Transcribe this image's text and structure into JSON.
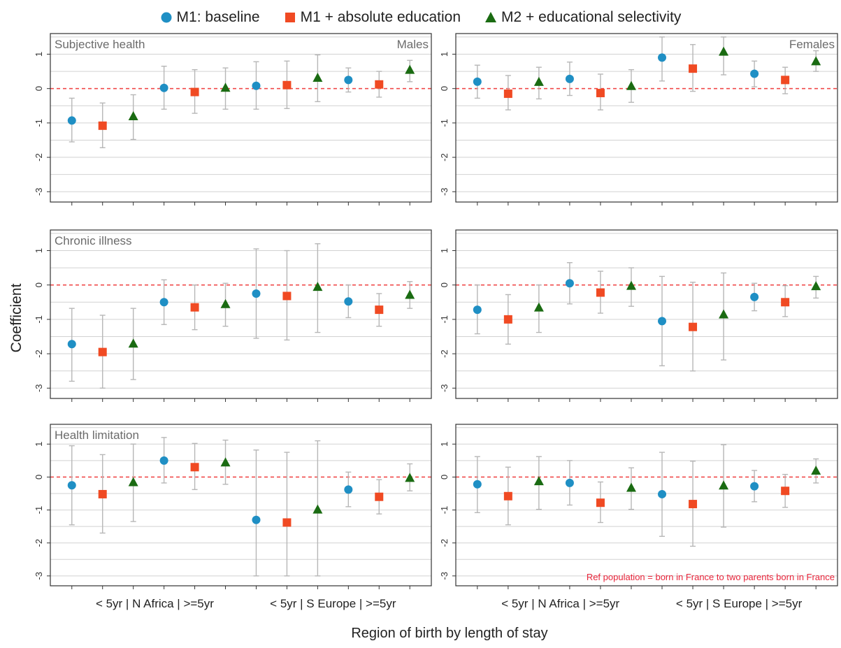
{
  "legend": {
    "items": [
      {
        "label": "M1: baseline",
        "marker": "circle",
        "color": "#1f8fc4"
      },
      {
        "label": "M1 + absolute education",
        "marker": "square",
        "color": "#f04a23"
      },
      {
        "label": "M2 + educational selectivity",
        "marker": "triangle",
        "color": "#1a6b12"
      }
    ]
  },
  "axes": {
    "ylabel": "Coefficient",
    "xlabel": "Region of birth by length of stay",
    "yticks": [
      1,
      0,
      -1,
      -2,
      -3
    ],
    "ylim": [
      -3.3,
      1.6
    ],
    "category_label_1": "< 5yr | N Africa | >=5yr",
    "category_label_2": "< 5yr | S Europe | >=5yr",
    "reference_line": 0,
    "reference_note": "Ref population = born in France to two parents born in France"
  },
  "colors": {
    "baseline": "#1f8fc4",
    "absolute": "#f04a23",
    "selectivity": "#1a6b12",
    "errorbar": "#b7b7b7",
    "grid": "#d2d2d2",
    "refline": "#f04a4a"
  },
  "chart_data": [
    {
      "type": "scatter",
      "outcome": "Subjective health",
      "sex": "Males",
      "x": [
        "N Africa <5yr",
        "N Africa >=5yr",
        "S Europe <5yr",
        "S Europe >=5yr"
      ],
      "series": [
        {
          "name": "M1: baseline",
          "values": [
            -0.93,
            0.02,
            0.08,
            0.25
          ],
          "ci_low": [
            -1.55,
            -0.6,
            -0.6,
            -0.1
          ],
          "ci_high": [
            -0.28,
            0.65,
            0.78,
            0.6
          ]
        },
        {
          "name": "M1 + absolute education",
          "values": [
            -1.08,
            -0.1,
            0.1,
            0.12
          ],
          "ci_low": [
            -1.72,
            -0.72,
            -0.58,
            -0.25
          ],
          "ci_high": [
            -0.42,
            0.55,
            0.8,
            0.5
          ]
        },
        {
          "name": "M2 + educational selectivity",
          "values": [
            -0.8,
            0.03,
            0.32,
            0.55
          ],
          "ci_low": [
            -1.48,
            -0.6,
            -0.38,
            0.2
          ],
          "ci_high": [
            -0.18,
            0.6,
            0.98,
            0.82
          ]
        }
      ]
    },
    {
      "type": "scatter",
      "outcome": "",
      "sex": "Females",
      "x": [
        "N Africa <5yr",
        "N Africa >=5yr",
        "S Europe <5yr",
        "S Europe >=5yr"
      ],
      "series": [
        {
          "name": "M1: baseline",
          "values": [
            0.2,
            0.28,
            0.9,
            0.43
          ],
          "ci_low": [
            -0.28,
            -0.2,
            0.22,
            0.05
          ],
          "ci_high": [
            0.68,
            0.77,
            1.5,
            0.8
          ]
        },
        {
          "name": "M1 + absolute education",
          "values": [
            -0.15,
            -0.13,
            0.58,
            0.25
          ],
          "ci_low": [
            -0.62,
            -0.62,
            -0.08,
            -0.15
          ],
          "ci_high": [
            0.38,
            0.42,
            1.28,
            0.62
          ]
        },
        {
          "name": "M2 + educational selectivity",
          "values": [
            0.2,
            0.08,
            1.08,
            0.8
          ],
          "ci_low": [
            -0.3,
            -0.4,
            0.4,
            0.5
          ],
          "ci_high": [
            0.62,
            0.55,
            1.5,
            1.1
          ]
        }
      ]
    },
    {
      "type": "scatter",
      "outcome": "Chronic illness",
      "sex": "",
      "x": [
        "N Africa <5yr",
        "N Africa >=5yr",
        "S Europe <5yr",
        "S Europe >=5yr"
      ],
      "series": [
        {
          "name": "M1: baseline",
          "values": [
            -1.72,
            -0.5,
            -0.25,
            -0.48
          ],
          "ci_low": [
            -2.8,
            -1.15,
            -1.55,
            -0.95
          ],
          "ci_high": [
            -0.68,
            0.15,
            1.05,
            0.0
          ]
        },
        {
          "name": "M1 + absolute education",
          "values": [
            -1.95,
            -0.65,
            -0.32,
            -0.72
          ],
          "ci_low": [
            -3.0,
            -1.3,
            -1.6,
            -1.2
          ],
          "ci_high": [
            -0.88,
            0.0,
            1.0,
            -0.25
          ]
        },
        {
          "name": "M2 + educational selectivity",
          "values": [
            -1.7,
            -0.55,
            -0.05,
            -0.28
          ],
          "ci_low": [
            -2.75,
            -1.2,
            -1.38,
            -0.68
          ],
          "ci_high": [
            -0.68,
            0.05,
            1.2,
            0.1
          ]
        }
      ]
    },
    {
      "type": "scatter",
      "outcome": "",
      "sex": "",
      "x": [
        "N Africa <5yr",
        "N Africa >=5yr",
        "S Europe <5yr",
        "S Europe >=5yr"
      ],
      "series": [
        {
          "name": "M1: baseline",
          "values": [
            -0.72,
            0.05,
            -1.05,
            -0.35
          ],
          "ci_low": [
            -1.42,
            -0.55,
            -2.35,
            -0.75
          ],
          "ci_high": [
            0.0,
            0.65,
            0.25,
            0.05
          ]
        },
        {
          "name": "M1 + absolute education",
          "values": [
            -1.0,
            -0.22,
            -1.22,
            -0.5
          ],
          "ci_low": [
            -1.72,
            -0.82,
            -2.5,
            -0.92
          ],
          "ci_high": [
            -0.28,
            0.4,
            0.08,
            -0.02
          ]
        },
        {
          "name": "M2 + educational selectivity",
          "values": [
            -0.65,
            -0.02,
            -0.85,
            -0.03
          ],
          "ci_low": [
            -1.38,
            -0.62,
            -2.18,
            -0.38
          ],
          "ci_high": [
            0.0,
            0.5,
            0.35,
            0.25
          ]
        }
      ]
    },
    {
      "type": "scatter",
      "outcome": "Health limitation",
      "sex": "",
      "x": [
        "N Africa <5yr",
        "N Africa >=5yr",
        "S Europe <5yr",
        "S Europe >=5yr"
      ],
      "series": [
        {
          "name": "M1: baseline",
          "values": [
            -0.25,
            0.5,
            -1.3,
            -0.38
          ],
          "ci_low": [
            -1.45,
            -0.18,
            -3.0,
            -0.9
          ],
          "ci_high": [
            0.95,
            1.2,
            0.82,
            0.15
          ]
        },
        {
          "name": "M1 + absolute education",
          "values": [
            -0.52,
            0.3,
            -1.38,
            -0.6
          ],
          "ci_low": [
            -1.7,
            -0.38,
            -3.0,
            -1.12
          ],
          "ci_high": [
            0.68,
            1.02,
            0.75,
            -0.08
          ]
        },
        {
          "name": "M2 + educational selectivity",
          "values": [
            -0.15,
            0.45,
            -0.98,
            -0.02
          ],
          "ci_low": [
            -1.35,
            -0.22,
            -3.0,
            -0.42
          ],
          "ci_high": [
            1.0,
            1.12,
            1.1,
            0.4
          ]
        }
      ]
    },
    {
      "type": "scatter",
      "outcome": "",
      "sex": "",
      "x": [
        "N Africa <5yr",
        "N Africa >=5yr",
        "S Europe <5yr",
        "S Europe >=5yr"
      ],
      "series": [
        {
          "name": "M1: baseline",
          "values": [
            -0.22,
            -0.18,
            -0.52,
            -0.28
          ],
          "ci_low": [
            -1.08,
            -0.85,
            -1.8,
            -0.75
          ],
          "ci_high": [
            0.62,
            0.5,
            0.75,
            0.2
          ]
        },
        {
          "name": "M1 + absolute education",
          "values": [
            -0.58,
            -0.78,
            -0.82,
            -0.42
          ],
          "ci_low": [
            -1.45,
            -1.38,
            -2.1,
            -0.92
          ],
          "ci_high": [
            0.3,
            -0.15,
            0.48,
            0.08
          ]
        },
        {
          "name": "M2 + educational selectivity",
          "values": [
            -0.12,
            -0.32,
            -0.25,
            0.2
          ],
          "ci_low": [
            -0.98,
            -0.98,
            -1.52,
            -0.18
          ],
          "ci_high": [
            0.62,
            0.28,
            0.98,
            0.55
          ]
        }
      ]
    }
  ]
}
